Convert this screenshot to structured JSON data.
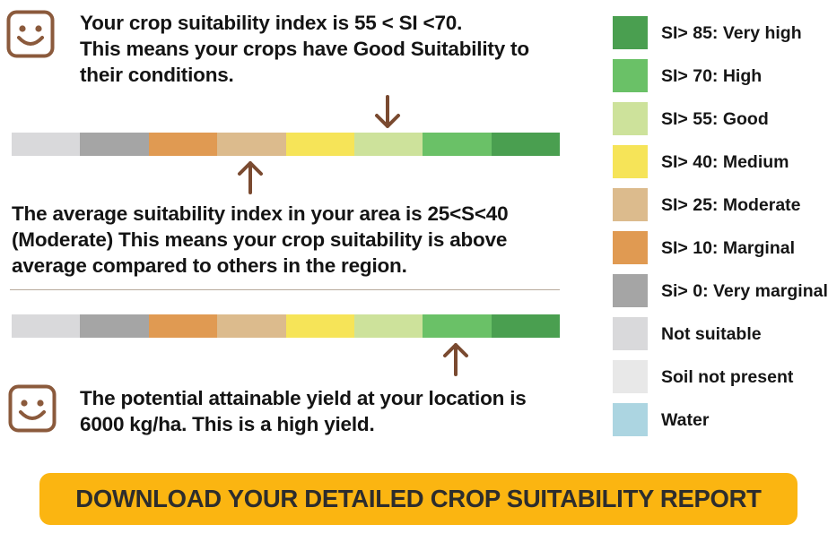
{
  "message1": {
    "line1": "Your crop suitability index is 55 < SI <70.",
    "line2": "This means your crops have Good Suitability to",
    "line3": "their conditions."
  },
  "message2": {
    "line1": "The average suitability index in your area is 25<S<40",
    "line2": "(Moderate) This means your crop suitability is above",
    "line3": "average compared to others in the region."
  },
  "message3": {
    "line1": "The potential attainable yield at your location is",
    "line2": "6000 kg/ha. This is a high yield."
  },
  "scale_colors": [
    "#d9d9db",
    "#a5a5a5",
    "#e09a52",
    "#dcbb8d",
    "#f6e458",
    "#cde29b",
    "#6ac167",
    "#4a9f50"
  ],
  "markers": {
    "your_index_class": "Good",
    "area_average_class": "Moderate",
    "yield_class": "High"
  },
  "legend": [
    {
      "label": "SI> 85: Very high",
      "color": "#4a9f50"
    },
    {
      "label": "SI> 70: High",
      "color": "#6ac167"
    },
    {
      "label": "SI> 55: Good",
      "color": "#cde29b"
    },
    {
      "label": "SI> 40: Medium",
      "color": "#f6e458"
    },
    {
      "label": "SI> 25: Moderate",
      "color": "#dcbb8d"
    },
    {
      "label": "SI> 10: Marginal",
      "color": "#e09a52"
    },
    {
      "label": "Si> 0: Very marginal",
      "color": "#a5a5a5"
    },
    {
      "label": "Not suitable",
      "color": "#d9d9db"
    },
    {
      "label": "Soil not present",
      "color": "#e8e8e8"
    },
    {
      "label": "Water",
      "color": "#acd5e1"
    }
  ],
  "download_button": {
    "label": "DOWNLOAD YOUR DETAILED CROP SUITABILITY REPORT"
  },
  "colors": {
    "accent": "#fbb511",
    "icon_brown": "#8b5a3c",
    "arrow_brown": "#7a4a30"
  }
}
